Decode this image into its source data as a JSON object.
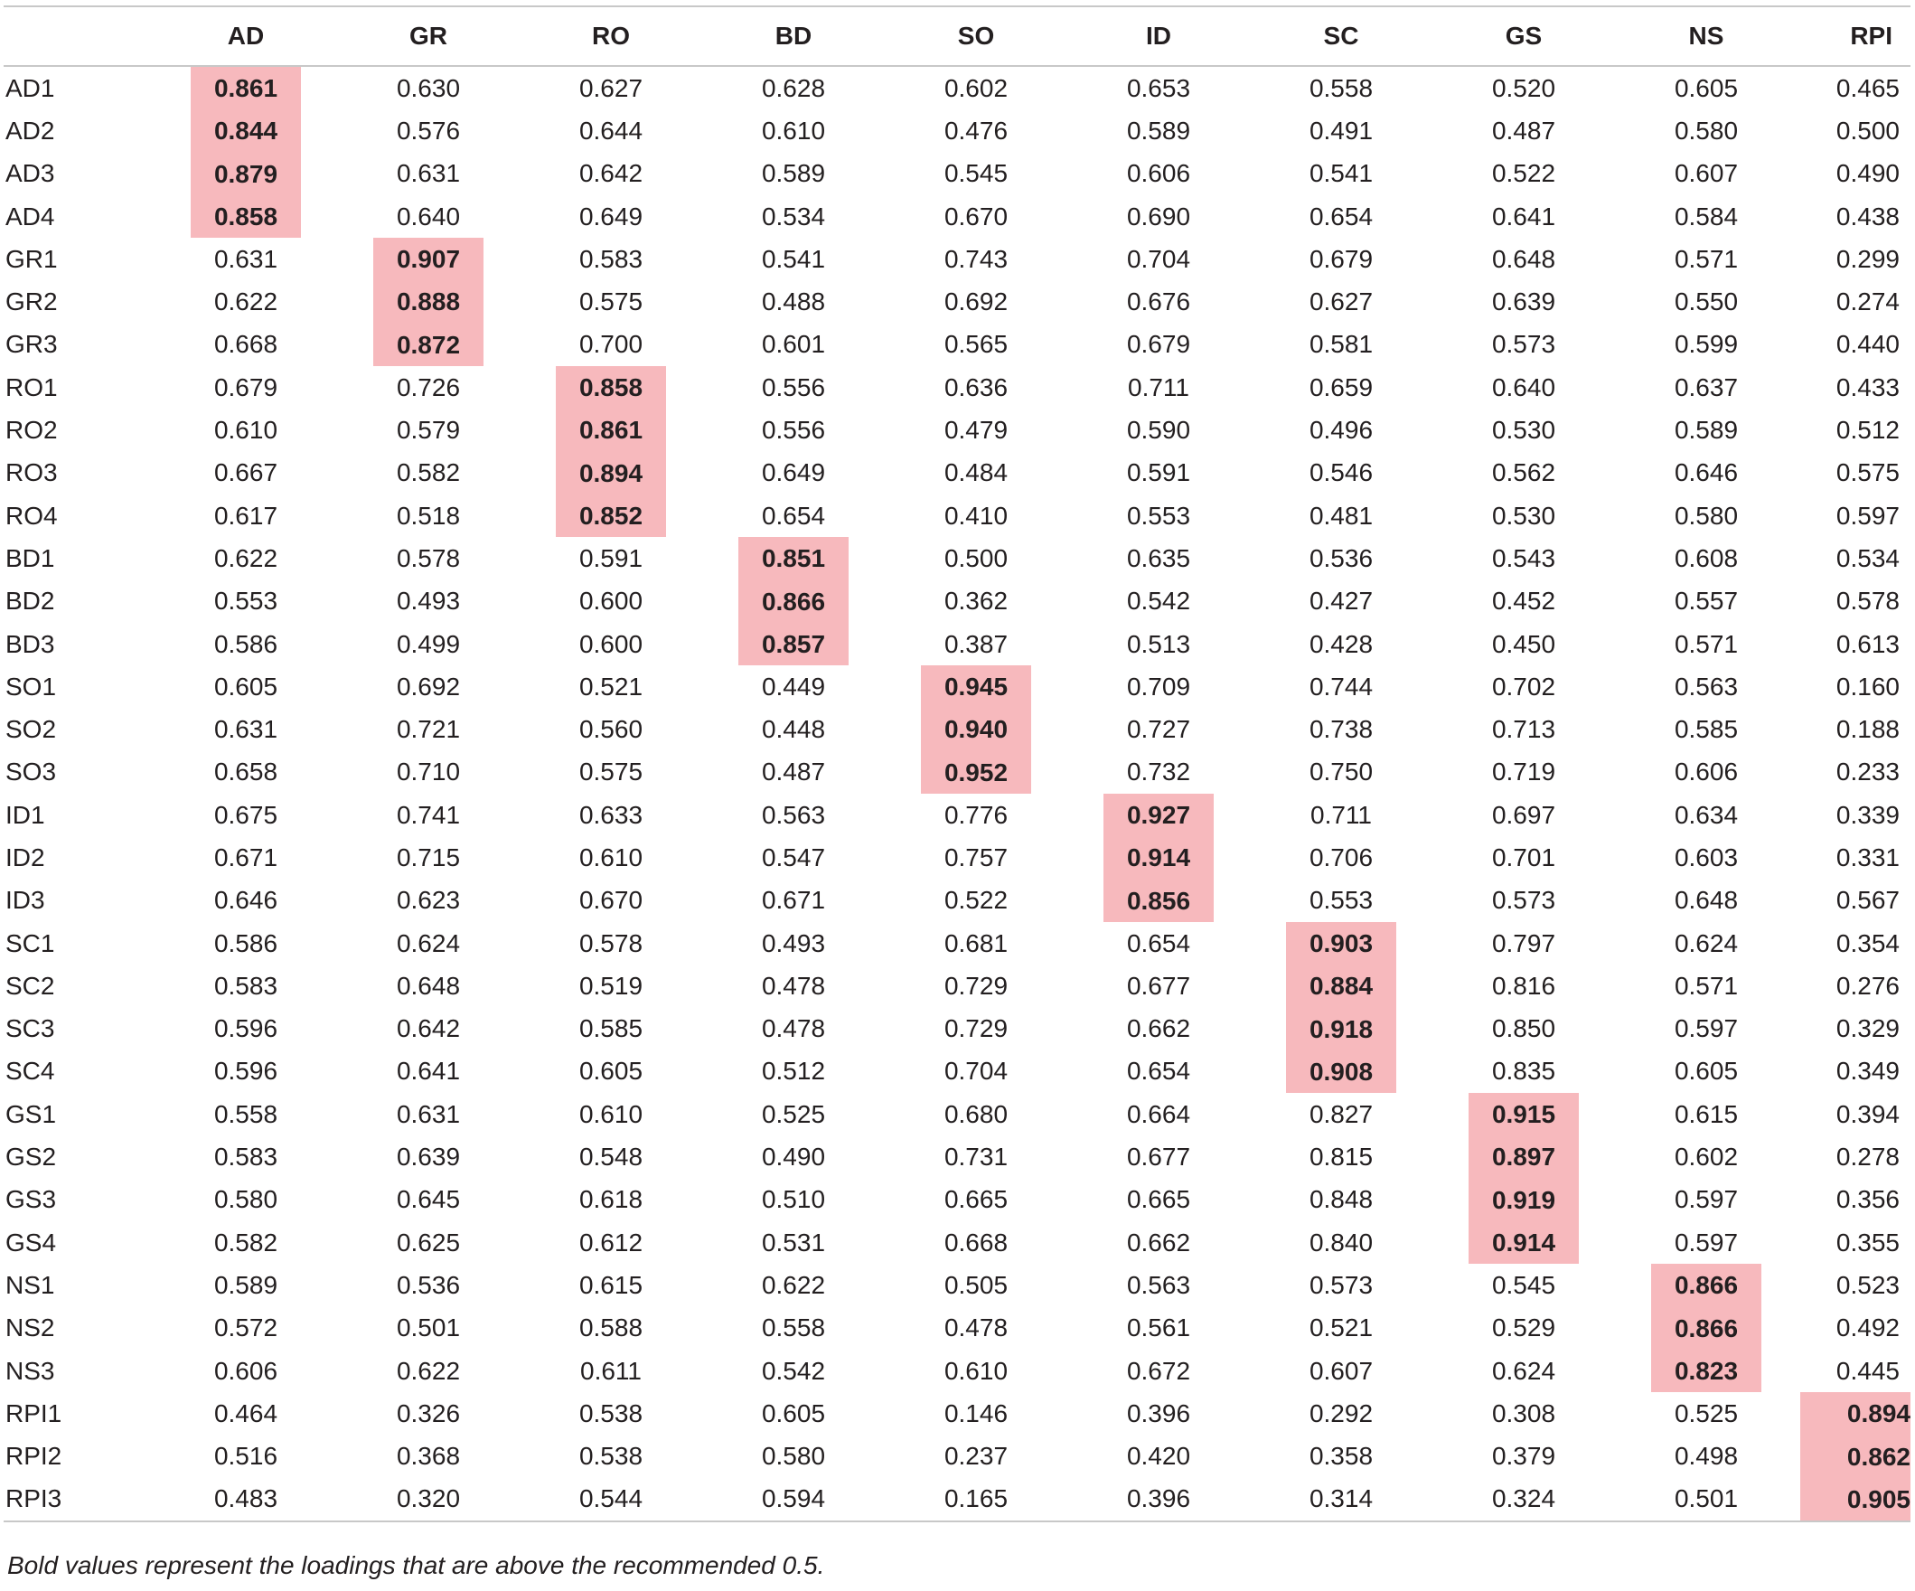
{
  "columns": [
    "",
    "AD",
    "GR",
    "RO",
    "BD",
    "SO",
    "ID",
    "SC",
    "GS",
    "NS",
    "RPI"
  ],
  "highlight_color": "#f7b9bd",
  "rows": [
    {
      "label": "AD1",
      "values": [
        "0.861",
        "0.630",
        "0.627",
        "0.628",
        "0.602",
        "0.653",
        "0.558",
        "0.520",
        "0.605",
        "0.465"
      ],
      "hl": 0
    },
    {
      "label": "AD2",
      "values": [
        "0.844",
        "0.576",
        "0.644",
        "0.610",
        "0.476",
        "0.589",
        "0.491",
        "0.487",
        "0.580",
        "0.500"
      ],
      "hl": 0
    },
    {
      "label": "AD3",
      "values": [
        "0.879",
        "0.631",
        "0.642",
        "0.589",
        "0.545",
        "0.606",
        "0.541",
        "0.522",
        "0.607",
        "0.490"
      ],
      "hl": 0
    },
    {
      "label": "AD4",
      "values": [
        "0.858",
        "0.640",
        "0.649",
        "0.534",
        "0.670",
        "0.690",
        "0.654",
        "0.641",
        "0.584",
        "0.438"
      ],
      "hl": 0
    },
    {
      "label": "GR1",
      "values": [
        "0.631",
        "0.907",
        "0.583",
        "0.541",
        "0.743",
        "0.704",
        "0.679",
        "0.648",
        "0.571",
        "0.299"
      ],
      "hl": 1
    },
    {
      "label": "GR2",
      "values": [
        "0.622",
        "0.888",
        "0.575",
        "0.488",
        "0.692",
        "0.676",
        "0.627",
        "0.639",
        "0.550",
        "0.274"
      ],
      "hl": 1
    },
    {
      "label": "GR3",
      "values": [
        "0.668",
        "0.872",
        "0.700",
        "0.601",
        "0.565",
        "0.679",
        "0.581",
        "0.573",
        "0.599",
        "0.440"
      ],
      "hl": 1
    },
    {
      "label": "RO1",
      "values": [
        "0.679",
        "0.726",
        "0.858",
        "0.556",
        "0.636",
        "0.711",
        "0.659",
        "0.640",
        "0.637",
        "0.433"
      ],
      "hl": 2
    },
    {
      "label": "RO2",
      "values": [
        "0.610",
        "0.579",
        "0.861",
        "0.556",
        "0.479",
        "0.590",
        "0.496",
        "0.530",
        "0.589",
        "0.512"
      ],
      "hl": 2
    },
    {
      "label": "RO3",
      "values": [
        "0.667",
        "0.582",
        "0.894",
        "0.649",
        "0.484",
        "0.591",
        "0.546",
        "0.562",
        "0.646",
        "0.575"
      ],
      "hl": 2
    },
    {
      "label": "RO4",
      "values": [
        "0.617",
        "0.518",
        "0.852",
        "0.654",
        "0.410",
        "0.553",
        "0.481",
        "0.530",
        "0.580",
        "0.597"
      ],
      "hl": 2
    },
    {
      "label": "BD1",
      "values": [
        "0.622",
        "0.578",
        "0.591",
        "0.851",
        "0.500",
        "0.635",
        "0.536",
        "0.543",
        "0.608",
        "0.534"
      ],
      "hl": 3
    },
    {
      "label": "BD2",
      "values": [
        "0.553",
        "0.493",
        "0.600",
        "0.866",
        "0.362",
        "0.542",
        "0.427",
        "0.452",
        "0.557",
        "0.578"
      ],
      "hl": 3
    },
    {
      "label": "BD3",
      "values": [
        "0.586",
        "0.499",
        "0.600",
        "0.857",
        "0.387",
        "0.513",
        "0.428",
        "0.450",
        "0.571",
        "0.613"
      ],
      "hl": 3
    },
    {
      "label": "SO1",
      "values": [
        "0.605",
        "0.692",
        "0.521",
        "0.449",
        "0.945",
        "0.709",
        "0.744",
        "0.702",
        "0.563",
        "0.160"
      ],
      "hl": 4
    },
    {
      "label": "SO2",
      "values": [
        "0.631",
        "0.721",
        "0.560",
        "0.448",
        "0.940",
        "0.727",
        "0.738",
        "0.713",
        "0.585",
        "0.188"
      ],
      "hl": 4
    },
    {
      "label": "SO3",
      "values": [
        "0.658",
        "0.710",
        "0.575",
        "0.487",
        "0.952",
        "0.732",
        "0.750",
        "0.719",
        "0.606",
        "0.233"
      ],
      "hl": 4
    },
    {
      "label": "ID1",
      "values": [
        "0.675",
        "0.741",
        "0.633",
        "0.563",
        "0.776",
        "0.927",
        "0.711",
        "0.697",
        "0.634",
        "0.339"
      ],
      "hl": 5
    },
    {
      "label": "ID2",
      "values": [
        "0.671",
        "0.715",
        "0.610",
        "0.547",
        "0.757",
        "0.914",
        "0.706",
        "0.701",
        "0.603",
        "0.331"
      ],
      "hl": 5
    },
    {
      "label": "ID3",
      "values": [
        "0.646",
        "0.623",
        "0.670",
        "0.671",
        "0.522",
        "0.856",
        "0.553",
        "0.573",
        "0.648",
        "0.567"
      ],
      "hl": 5
    },
    {
      "label": "SC1",
      "values": [
        "0.586",
        "0.624",
        "0.578",
        "0.493",
        "0.681",
        "0.654",
        "0.903",
        "0.797",
        "0.624",
        "0.354"
      ],
      "hl": 6
    },
    {
      "label": "SC2",
      "values": [
        "0.583",
        "0.648",
        "0.519",
        "0.478",
        "0.729",
        "0.677",
        "0.884",
        "0.816",
        "0.571",
        "0.276"
      ],
      "hl": 6
    },
    {
      "label": "SC3",
      "values": [
        "0.596",
        "0.642",
        "0.585",
        "0.478",
        "0.729",
        "0.662",
        "0.918",
        "0.850",
        "0.597",
        "0.329"
      ],
      "hl": 6
    },
    {
      "label": "SC4",
      "values": [
        "0.596",
        "0.641",
        "0.605",
        "0.512",
        "0.704",
        "0.654",
        "0.908",
        "0.835",
        "0.605",
        "0.349"
      ],
      "hl": 6
    },
    {
      "label": "GS1",
      "values": [
        "0.558",
        "0.631",
        "0.610",
        "0.525",
        "0.680",
        "0.664",
        "0.827",
        "0.915",
        "0.615",
        "0.394"
      ],
      "hl": 7
    },
    {
      "label": "GS2",
      "values": [
        "0.583",
        "0.639",
        "0.548",
        "0.490",
        "0.731",
        "0.677",
        "0.815",
        "0.897",
        "0.602",
        "0.278"
      ],
      "hl": 7
    },
    {
      "label": "GS3",
      "values": [
        "0.580",
        "0.645",
        "0.618",
        "0.510",
        "0.665",
        "0.665",
        "0.848",
        "0.919",
        "0.597",
        "0.356"
      ],
      "hl": 7
    },
    {
      "label": "GS4",
      "values": [
        "0.582",
        "0.625",
        "0.612",
        "0.531",
        "0.668",
        "0.662",
        "0.840",
        "0.914",
        "0.597",
        "0.355"
      ],
      "hl": 7
    },
    {
      "label": "NS1",
      "values": [
        "0.589",
        "0.536",
        "0.615",
        "0.622",
        "0.505",
        "0.563",
        "0.573",
        "0.545",
        "0.866",
        "0.523"
      ],
      "hl": 8
    },
    {
      "label": "NS2",
      "values": [
        "0.572",
        "0.501",
        "0.588",
        "0.558",
        "0.478",
        "0.561",
        "0.521",
        "0.529",
        "0.866",
        "0.492"
      ],
      "hl": 8
    },
    {
      "label": "NS3",
      "values": [
        "0.606",
        "0.622",
        "0.611",
        "0.542",
        "0.610",
        "0.672",
        "0.607",
        "0.624",
        "0.823",
        "0.445"
      ],
      "hl": 8
    },
    {
      "label": "RPI1",
      "values": [
        "0.464",
        "0.326",
        "0.538",
        "0.605",
        "0.146",
        "0.396",
        "0.292",
        "0.308",
        "0.525",
        "0.894"
      ],
      "hl": 9
    },
    {
      "label": "RPI2",
      "values": [
        "0.516",
        "0.368",
        "0.538",
        "0.580",
        "0.237",
        "0.420",
        "0.358",
        "0.379",
        "0.498",
        "0.862"
      ],
      "hl": 9
    },
    {
      "label": "RPI3",
      "values": [
        "0.483",
        "0.320",
        "0.544",
        "0.594",
        "0.165",
        "0.396",
        "0.314",
        "0.324",
        "0.501",
        "0.905"
      ],
      "hl": 9
    }
  ],
  "footnote": "Bold values represent the loadings that are above the recommended 0.5."
}
